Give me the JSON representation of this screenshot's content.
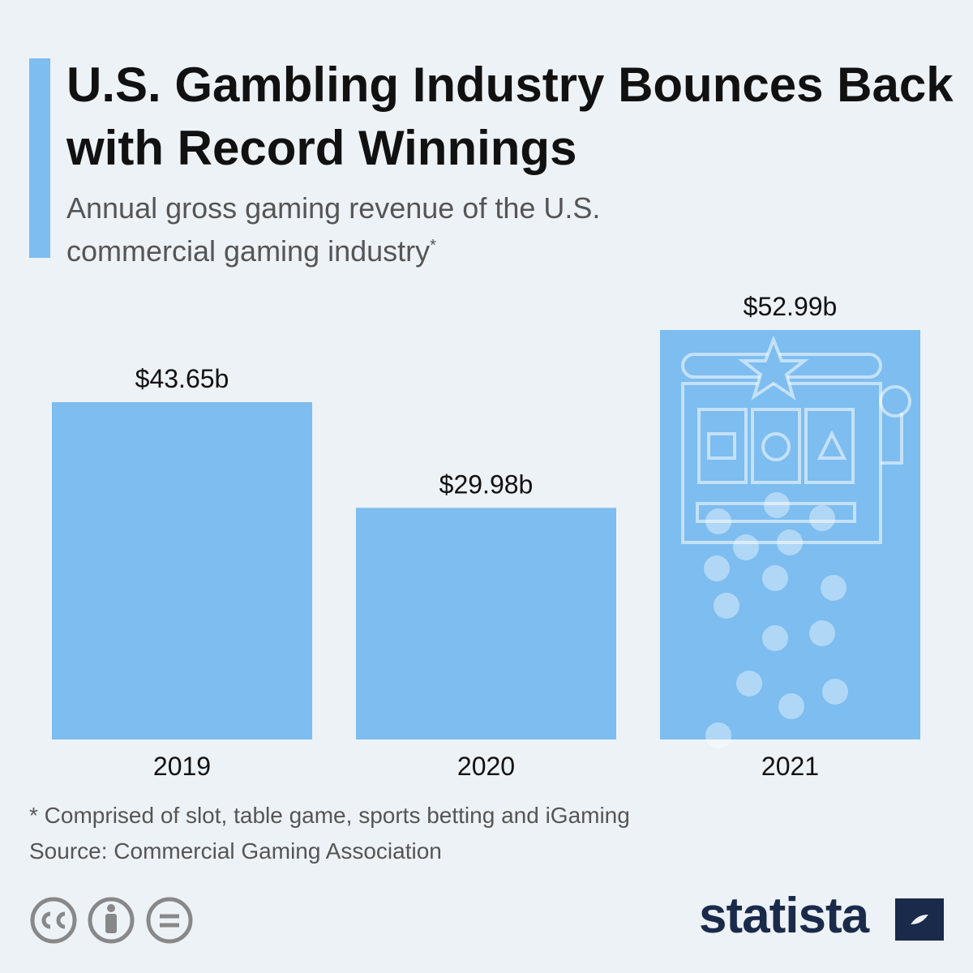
{
  "chart_data": {
    "type": "bar",
    "title": "U.S. Gambling Industry Bounces Back with Record Winnings",
    "subtitle": "Annual gross gaming revenue of the U.S. commercial gaming industry",
    "subtitle_note_marker": "*",
    "categories": [
      "2019",
      "2020",
      "2021"
    ],
    "values": [
      43.65,
      29.98,
      52.99
    ],
    "value_labels": [
      "$43.65b",
      "$29.98b",
      "$52.99b"
    ],
    "color": "#7dbdf0",
    "footnote": "* Comprised of slot, table game, sports betting and iGaming",
    "source": "Source: Commercial Gaming Association",
    "brand": "statista"
  }
}
